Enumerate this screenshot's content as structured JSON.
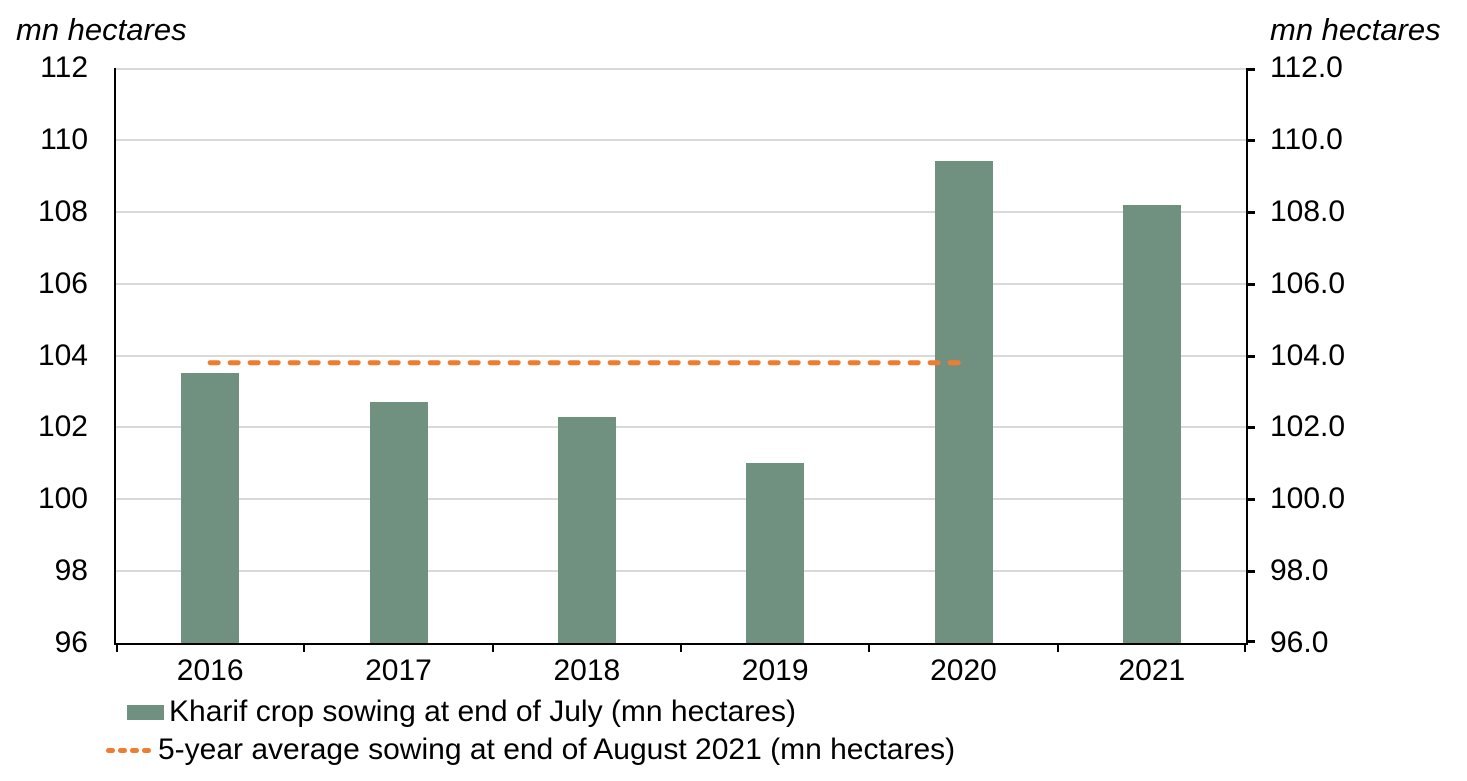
{
  "chart_data": {
    "type": "bar",
    "title": "",
    "categories": [
      "2016",
      "2017",
      "2018",
      "2019",
      "2020",
      "2021"
    ],
    "series": [
      {
        "name": "Kharif crop sowing at end of July (mn hectares)",
        "type": "bar",
        "color": "#709180",
        "values": [
          103.5,
          102.7,
          102.3,
          101.0,
          109.4,
          108.2
        ]
      },
      {
        "name": "5-year average sowing at end of August 2021 (mn hectares)",
        "type": "dashed-line",
        "color": "#ED7D31",
        "value": 103.8,
        "x_start_category": "2016",
        "x_end_category": "2020"
      }
    ],
    "left_axis": {
      "title": "mn hectares",
      "ylim": [
        96,
        112
      ],
      "tick_values": [
        112,
        110,
        108,
        106,
        104,
        102,
        100,
        98,
        96
      ],
      "tick_labels": [
        "112",
        "110",
        "108",
        "106",
        "104",
        "102",
        "100",
        "98",
        "96"
      ]
    },
    "right_axis": {
      "title": "mn hectares",
      "tick_labels": [
        "112.0",
        "110.0",
        "108.0",
        "106.0",
        "104.0",
        "102.0",
        "100.0",
        "98.0",
        "96.0"
      ]
    },
    "grid": "horizontal",
    "legend_position": "bottom-left",
    "colors": {
      "gridline": "#D9D9D9",
      "axis": "#000000",
      "text": "#000000",
      "background": "#FFFFFF"
    }
  }
}
